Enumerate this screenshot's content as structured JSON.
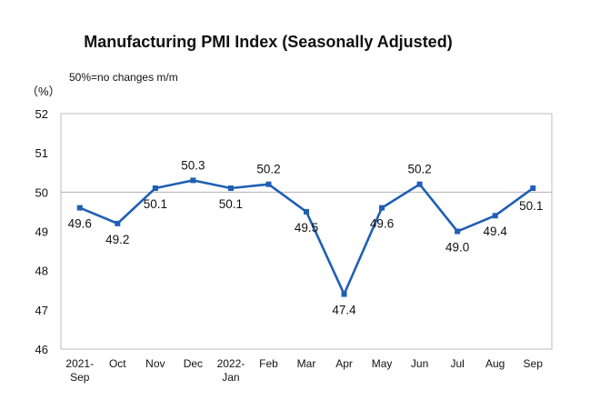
{
  "chart_data": {
    "type": "line",
    "title": "Manufacturing PMI Index (Seasonally Adjusted)",
    "y_unit": "（%）",
    "note": "50%=no changes m/m",
    "categories": [
      [
        "2021-",
        "Sep"
      ],
      [
        "Oct"
      ],
      [
        "Nov"
      ],
      [
        "Dec"
      ],
      [
        "2022-",
        "Jan"
      ],
      [
        "Feb"
      ],
      [
        "Mar"
      ],
      [
        "Apr"
      ],
      [
        "May"
      ],
      [
        "Jun"
      ],
      [
        "Jul"
      ],
      [
        "Aug"
      ],
      [
        "Sep"
      ]
    ],
    "series": [
      {
        "values": [
          49.6,
          49.2,
          50.1,
          50.3,
          50.1,
          50.2,
          49.5,
          47.4,
          49.6,
          50.2,
          49.0,
          49.4,
          50.1
        ],
        "data_labels": [
          "49.6",
          "49.2",
          "50.1",
          "50.3",
          "50.1",
          "50.2",
          "49.5",
          "47.4",
          "49.6",
          "50.2",
          "49.0",
          "49.4",
          "50.1"
        ],
        "color": "#1f5fb4"
      }
    ],
    "ylim": [
      46,
      52
    ],
    "yticks": [
      46,
      47,
      48,
      49,
      50,
      51,
      52
    ],
    "reference_line": 50,
    "reference_line_color": "#b0b0b0",
    "grid": false,
    "legend": false
  }
}
